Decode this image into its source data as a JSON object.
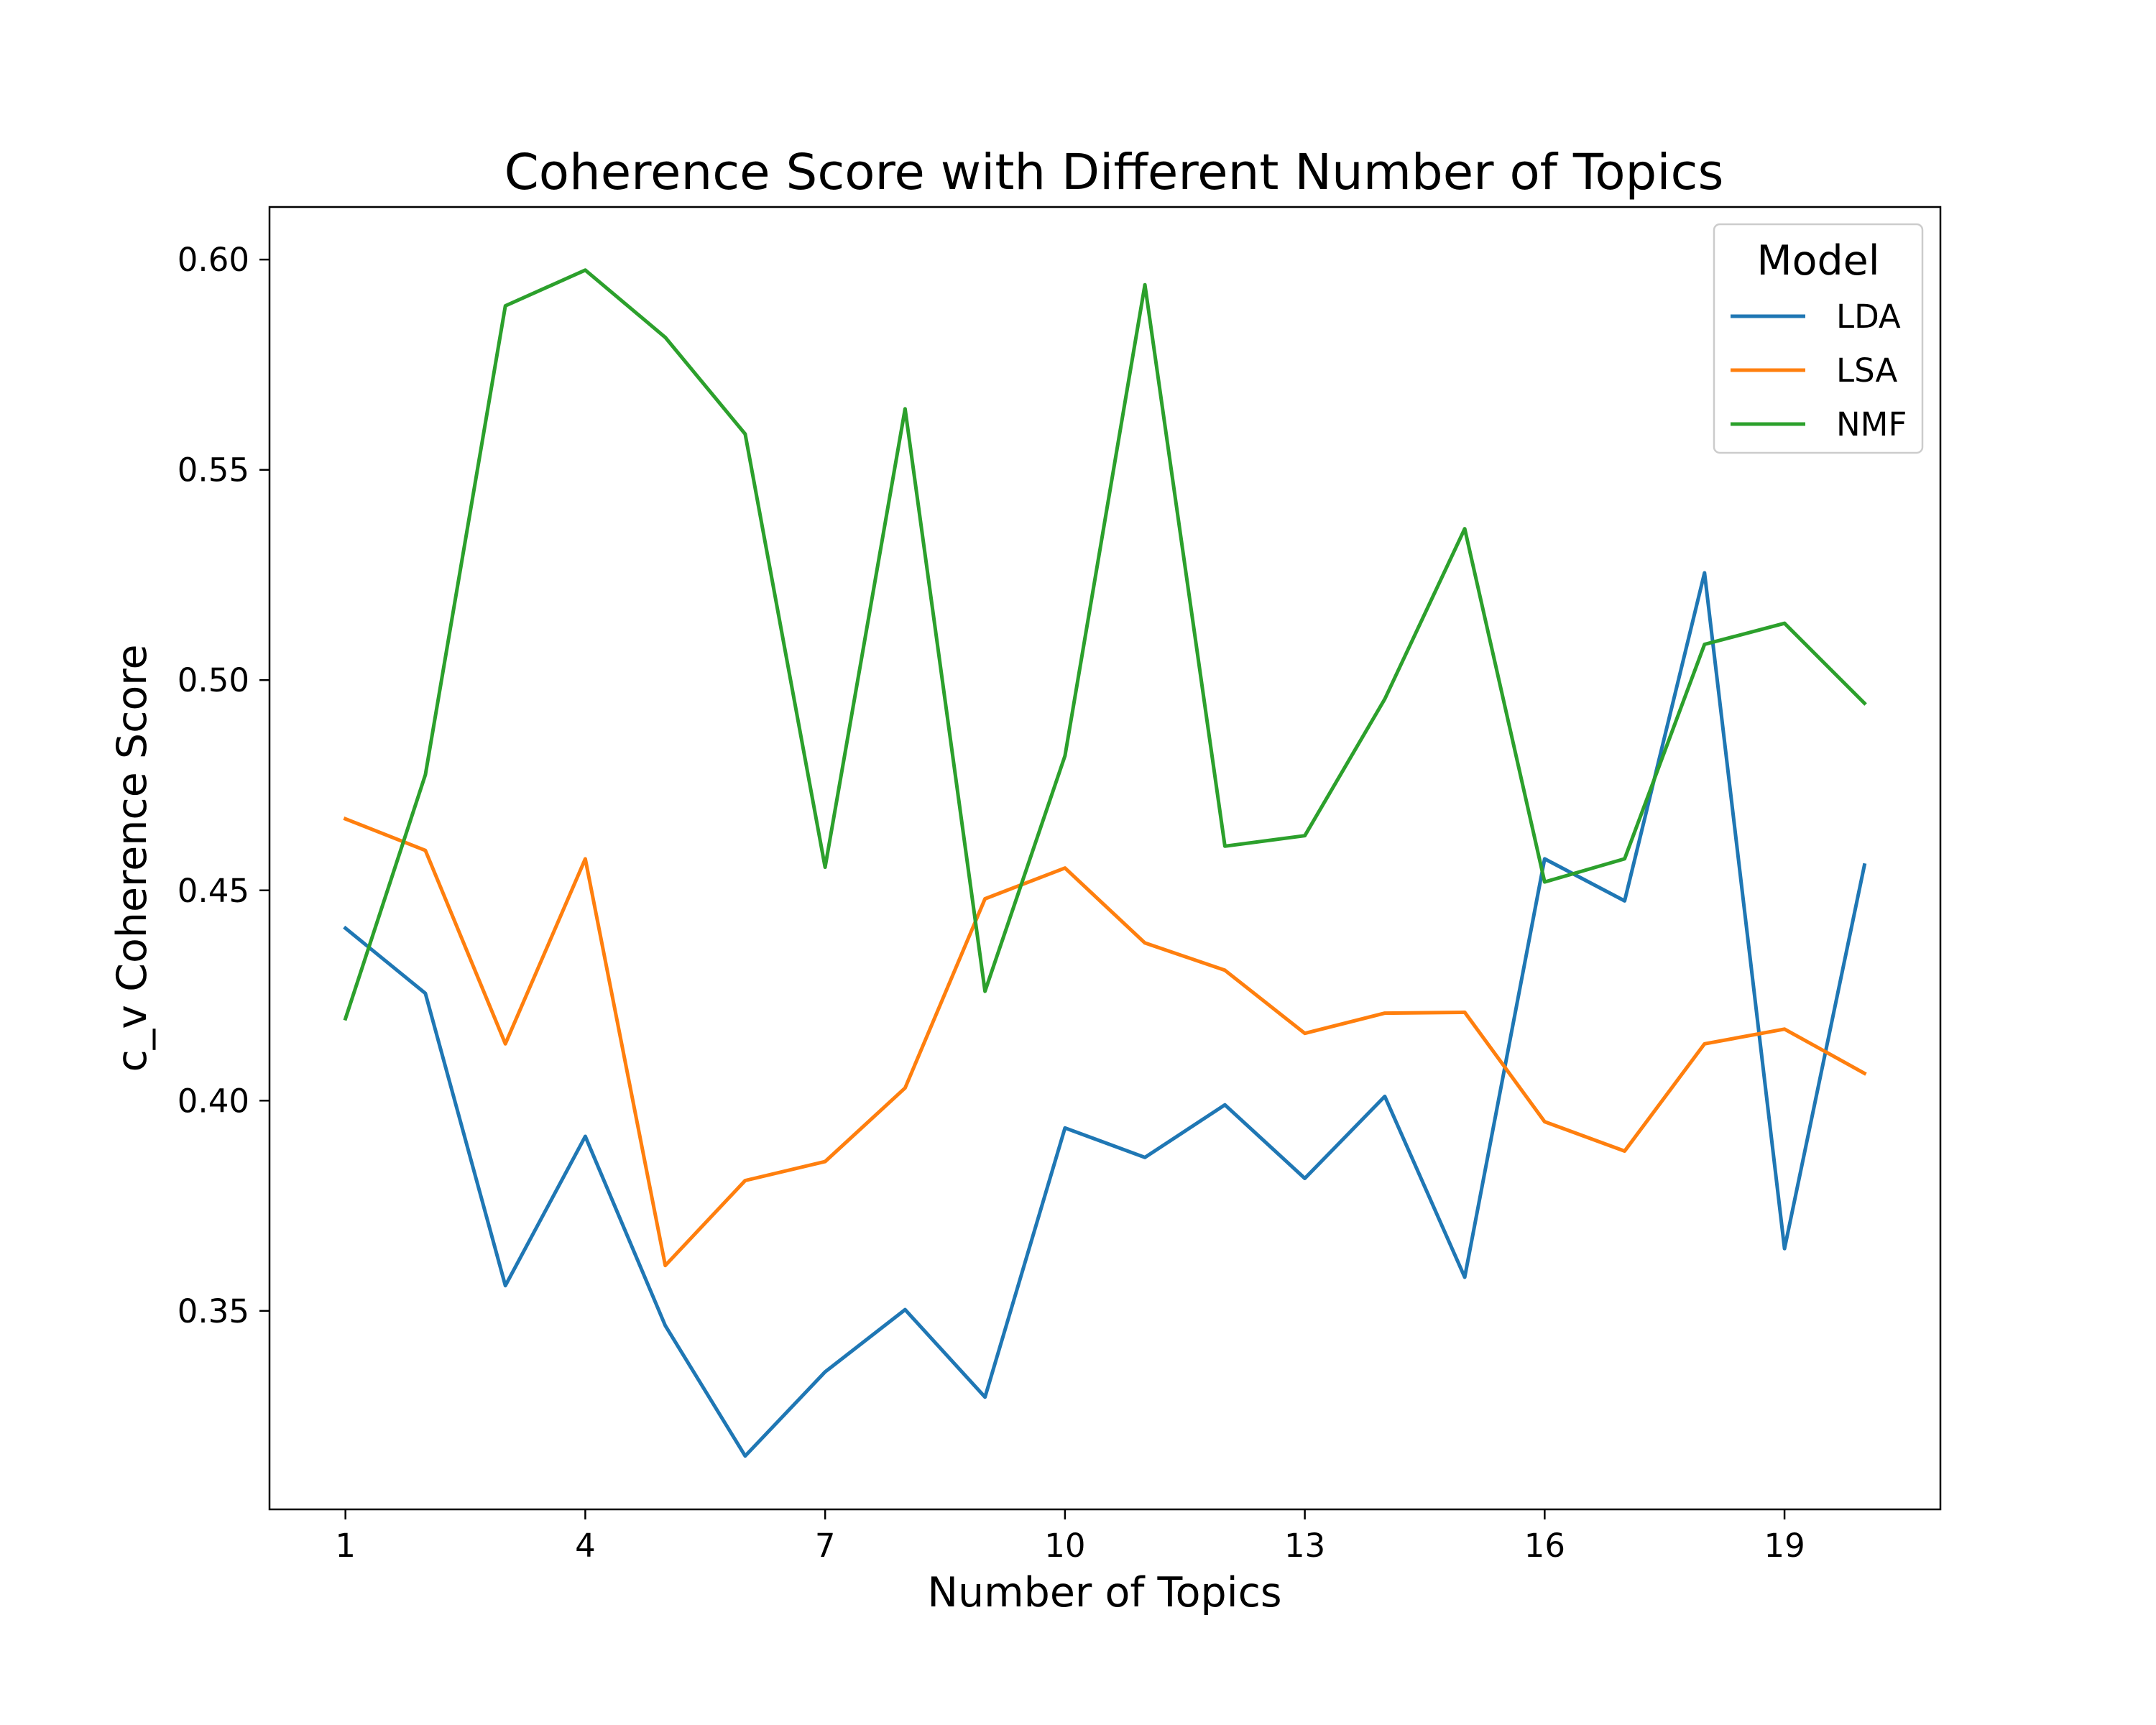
{
  "chart_data": {
    "type": "line",
    "title": "Coherence Score with Different Number of Topics",
    "xlabel": "Number of Topics",
    "ylabel": "c_v Coherence Score",
    "xlim": [
      0.05,
      20.95
    ],
    "ylim": [
      0.3028,
      0.6125
    ],
    "xticks": [
      1,
      4,
      7,
      10,
      13,
      16,
      19
    ],
    "yticks": [
      0.35,
      0.4,
      0.45,
      0.5,
      0.55,
      0.6
    ],
    "ytick_labels": [
      "0.35",
      "0.40",
      "0.45",
      "0.50",
      "0.55",
      "0.60"
    ],
    "grid": false,
    "legend": {
      "title": "Model",
      "position": "top-right"
    },
    "x": [
      1,
      2,
      3,
      4,
      5,
      6,
      7,
      8,
      9,
      10,
      11,
      12,
      13,
      14,
      15,
      16,
      17,
      18,
      19,
      20
    ],
    "series": [
      {
        "name": "LDA",
        "color": "#1f77b4",
        "values": [
          0.441,
          0.4255,
          0.356,
          0.3915,
          0.3465,
          0.3155,
          0.3355,
          0.3503,
          0.3295,
          0.3935,
          0.3865,
          0.399,
          0.3815,
          0.401,
          0.358,
          0.4575,
          0.4475,
          0.5255,
          0.3648,
          0.456
        ]
      },
      {
        "name": "LSA",
        "color": "#ff7f0e",
        "values": [
          0.467,
          0.4595,
          0.4135,
          0.4575,
          0.3608,
          0.381,
          0.3855,
          0.403,
          0.448,
          0.4553,
          0.4375,
          0.431,
          0.416,
          0.4208,
          0.421,
          0.395,
          0.388,
          0.4135,
          0.417,
          0.4065
        ]
      },
      {
        "name": "NMF",
        "color": "#2ca02c",
        "values": [
          0.4195,
          0.4775,
          0.589,
          0.5975,
          0.5815,
          0.5585,
          0.4555,
          0.5645,
          0.426,
          0.482,
          0.594,
          0.4605,
          0.463,
          0.4955,
          0.536,
          0.452,
          0.4575,
          0.5085,
          0.5135,
          0.4945
        ]
      }
    ]
  }
}
